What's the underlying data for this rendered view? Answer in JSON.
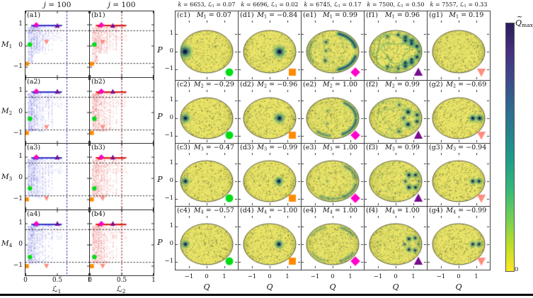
{
  "chart_data": {
    "type": "multi-panel scientific figure: 8 scatter panels (Lyapunov exponent vs magnetization) + 20 Husimi phase-space heatmaps + colorbar",
    "markers": {
      "c": {
        "shape": "circle",
        "color": "#00dd14",
        "name": "green-circle"
      },
      "d": {
        "shape": "square",
        "color": "#ff8a00",
        "name": "orange-square"
      },
      "e": {
        "shape": "diamond",
        "color": "#ff00cc",
        "name": "magenta-diamond"
      },
      "f": {
        "shape": "triangle-up",
        "color": "#780d8c",
        "name": "purple-triangle"
      },
      "g": {
        "shape": "triangle-down",
        "color": "#ff8d80",
        "name": "salmon-down-triangle"
      }
    },
    "scatter": {
      "titles": [
        {
          "var": "j",
          "rest": " = 100"
        },
        {
          "var": "j",
          "rest": " = 100"
        }
      ],
      "panel_ids": [
        [
          "(a1)",
          "(a2)",
          "(a3)",
          "(a4)"
        ],
        [
          "(b1)",
          "(b2)",
          "(b3)",
          "(b4)"
        ]
      ],
      "ylabels": [
        {
          "base": "M",
          "sub": "1"
        },
        {
          "base": "M",
          "sub": "2"
        },
        {
          "base": "M",
          "sub": "3"
        },
        {
          "base": "M",
          "sub": "4"
        }
      ],
      "xlabels": [
        {
          "base": "ℒ",
          "sub": "1"
        },
        {
          "base": "ℒ",
          "sub": "2"
        }
      ],
      "yticks": [
        {
          "v": 1,
          "t": "1"
        },
        {
          "v": 0,
          "t": "0"
        },
        {
          "v": -1,
          "t": "−1"
        }
      ],
      "xticks": [
        {
          "v": 0,
          "t": "0"
        },
        {
          "v": 0.5,
          "t": "0.5"
        },
        {
          "v": 1,
          "t": "1"
        }
      ],
      "point_colors": [
        "#3b3bd0",
        "#dd2525"
      ],
      "hlines": [
        0.72,
        -0.82
      ],
      "vlines": [
        {
          "x": 0.65,
          "color": "#2020a8"
        },
        {
          "x": 0.5,
          "color": "#8b1515"
        }
      ],
      "marker_points": [
        {
          "key": "c",
          "x": [
            0.07,
            0.07
          ],
          "M": [
            0.07,
            -0.29,
            -0.47,
            -0.57
          ]
        },
        {
          "key": "d",
          "x": [
            0.02,
            0.03
          ],
          "M": [
            -0.84,
            -0.96,
            -0.99,
            -1.0
          ]
        },
        {
          "key": "e",
          "x": [
            0.17,
            0.18
          ],
          "M": [
            0.99,
            1.0,
            1.0,
            1.0
          ]
        },
        {
          "key": "f",
          "x": [
            0.5,
            0.36
          ],
          "M": [
            0.96,
            0.99,
            0.99,
            1.0
          ]
        },
        {
          "key": "g",
          "x": [
            0.33,
            0.2
          ],
          "M": [
            0.19,
            -0.69,
            -0.94,
            -0.99
          ]
        }
      ],
      "cloud": {
        "band_y": [
          0.95,
          1.02
        ],
        "band_x": [
          0.08,
          0.56
        ],
        "spread_x": [
          0.0,
          0.45
        ],
        "spread_y": [
          -0.9,
          0.95
        ]
      }
    },
    "husimi": {
      "headers": [
        {
          "k": "k",
          "mid": " = 6653, ",
          "L": "ℒ",
          "Lsub": "1",
          "tail": " = 0.07"
        },
        {
          "k": "k",
          "mid": " = 6696, ",
          "L": "ℒ",
          "Lsub": "1",
          "tail": " = 0.02"
        },
        {
          "k": "k",
          "mid": " = 6745, ",
          "L": "ℒ",
          "Lsub": "1",
          "tail": " = 0.17"
        },
        {
          "k": "k",
          "mid": " = 7500, ",
          "L": "ℒ",
          "Lsub": "1",
          "tail": " = 0.50"
        },
        {
          "k": "k",
          "mid": " = 7557, ",
          "L": "ℒ",
          "Lsub": "1",
          "tail": " = 0.33"
        }
      ],
      "xlabel": "Q",
      "ylabel": "P",
      "xticks": [
        {
          "v": -1,
          "t": "−1"
        },
        {
          "v": 0,
          "t": "0"
        },
        {
          "v": 1,
          "t": "1"
        }
      ],
      "yticks": [
        {
          "v": 1,
          "t": "1"
        },
        {
          "v": 0,
          "t": "0"
        },
        {
          "v": -1,
          "t": "−1"
        }
      ],
      "cells": [
        [
          {
            "id": "(c1)",
            "var": "M",
            "sub": "1",
            "val": " = 0.07",
            "marker": "c",
            "spots": [
              [
                -1.22,
                0,
                0.27,
                1
              ]
            ],
            "arcs": [],
            "web": 0
          },
          {
            "id": "(d1)",
            "var": "M",
            "sub": "1",
            "val": " = −0.84",
            "marker": "d",
            "spots": [
              [
                0.55,
                0,
                0.24,
                1
              ]
            ],
            "arcs": [],
            "web": 0
          },
          {
            "id": "(e1)",
            "var": "M",
            "sub": "1",
            "val": " = 0.99",
            "marker": "e",
            "spots": [
              [
                -0.38,
                0.55,
                0.13,
                0.5
              ],
              [
                -0.38,
                0.05,
                0.12,
                0.45
              ],
              [
                -0.42,
                -0.5,
                0.13,
                0.5
              ]
            ],
            "arcs": [
              [
                15,
                75,
                0.95
              ],
              [
                -75,
                -15,
                0.95
              ],
              [
                150,
                215,
                0.25
              ]
            ],
            "web": 0.35
          },
          {
            "id": "(f1)",
            "var": "M",
            "sub": "1",
            "val": " = 0.96",
            "marker": "f",
            "spots": [
              [
                0.55,
                0.8,
                0.15,
                0.95
              ],
              [
                0.55,
                0.62,
                0.13,
                0.8
              ],
              [
                0.9,
                0.6,
                0.15,
                0.95
              ],
              [
                0.9,
                0.44,
                0.12,
                0.8
              ],
              [
                1.2,
                0.3,
                0.13,
                0.85
              ],
              [
                0.55,
                -0.8,
                0.15,
                0.95
              ],
              [
                0.55,
                -0.62,
                0.13,
                0.8
              ],
              [
                0.9,
                -0.6,
                0.15,
                0.95
              ],
              [
                0.9,
                -0.44,
                0.12,
                0.8
              ],
              [
                1.2,
                -0.3,
                0.13,
                0.85
              ],
              [
                0.15,
                0.95,
                0.12,
                0.6
              ],
              [
                0.15,
                -0.95,
                0.12,
                0.6
              ],
              [
                -0.45,
                0.85,
                0.11,
                0.5
              ],
              [
                -0.45,
                -0.85,
                0.11,
                0.5
              ],
              [
                1.32,
                0,
                0.1,
                0.5
              ]
            ],
            "arcs": [],
            "web": 1
          },
          {
            "id": "(g1)",
            "var": "M",
            "sub": "1",
            "val": " = 0.19",
            "marker": "g",
            "spots": [],
            "arcs": [],
            "web": 0.12
          }
        ],
        [
          {
            "id": "(c2)",
            "var": "M",
            "sub": "2",
            "val": " = −0.29",
            "marker": "c",
            "spots": [
              [
                -1.2,
                0,
                0.19,
                0.95
              ]
            ],
            "arcs": [],
            "web": 0
          },
          {
            "id": "(d2)",
            "var": "M",
            "sub": "2",
            "val": " = −0.96",
            "marker": "d",
            "spots": [
              [
                0.55,
                0,
                0.2,
                1
              ]
            ],
            "arcs": [],
            "web": 0
          },
          {
            "id": "(e2)",
            "var": "M",
            "sub": "2",
            "val": " = 1.00",
            "marker": "e",
            "spots": [
              [
                -0.3,
                0.4,
                0.1,
                0.3
              ],
              [
                -0.3,
                -0.3,
                0.1,
                0.3
              ]
            ],
            "arcs": [
              [
                5,
                60,
                0.6
              ],
              [
                -65,
                -5,
                0.7
              ],
              [
                -130,
                -95,
                0.4
              ]
            ],
            "web": 0.2
          },
          {
            "id": "(f2)",
            "var": "M",
            "sub": "2",
            "val": " = 0.99",
            "marker": "f",
            "spots": [
              [
                0.7,
                0.35,
                0.15,
                0.9
              ],
              [
                0.7,
                -0.35,
                0.15,
                0.9
              ],
              [
                1.2,
                0.18,
                0.12,
                0.8
              ],
              [
                1.2,
                -0.18,
                0.12,
                0.8
              ],
              [
                0.45,
                0,
                0.12,
                0.6
              ],
              [
                0.2,
                0.75,
                0.11,
                0.5
              ],
              [
                0.2,
                -0.75,
                0.11,
                0.5
              ]
            ],
            "arcs": [],
            "web": 0.55
          },
          {
            "id": "(g2)",
            "var": "M",
            "sub": "2",
            "val": " = −0.69",
            "marker": "g",
            "spots": [
              [
                0.8,
                0,
                0.15,
                1
              ],
              [
                1.18,
                0,
                0.15,
                1
              ]
            ],
            "arcs": [],
            "web": 0
          }
        ],
        [
          {
            "id": "(c3)",
            "var": "M",
            "sub": "3",
            "val": " = −0.47",
            "marker": "c",
            "spots": [
              [
                -1.2,
                0,
                0.16,
                0.9
              ]
            ],
            "arcs": [],
            "web": 0
          },
          {
            "id": "(d3)",
            "var": "M",
            "sub": "3",
            "val": " = −0.99",
            "marker": "d",
            "spots": [
              [
                0.52,
                0,
                0.17,
                1
              ]
            ],
            "arcs": [],
            "web": 0
          },
          {
            "id": "(e3)",
            "var": "M",
            "sub": "3",
            "val": " = 1.00",
            "marker": "e",
            "spots": [
              [
                -0.3,
                0,
                0.09,
                0.25
              ]
            ],
            "arcs": [
              [
                10,
                60,
                0.4
              ],
              [
                -60,
                -10,
                0.45
              ],
              [
                -120,
                -60,
                0.3
              ]
            ],
            "web": 0.15
          },
          {
            "id": "(f3)",
            "var": "M",
            "sub": "3",
            "val": " = 0.99",
            "marker": "f",
            "spots": [
              [
                0.75,
                0.35,
                0.13,
                0.9
              ],
              [
                0.75,
                -0.35,
                0.13,
                0.9
              ],
              [
                1.12,
                0.35,
                0.12,
                0.85
              ],
              [
                1.12,
                -0.35,
                0.12,
                0.85
              ],
              [
                0.55,
                0,
                0.11,
                0.6
              ],
              [
                1.3,
                0,
                0.09,
                0.4
              ]
            ],
            "arcs": [],
            "web": 0.3
          },
          {
            "id": "(g3)",
            "var": "M",
            "sub": "3",
            "val": " = −0.94",
            "marker": "g",
            "spots": [
              [
                0.8,
                0,
                0.13,
                0.9
              ],
              [
                1.15,
                0,
                0.13,
                0.9
              ]
            ],
            "arcs": [],
            "web": 0
          }
        ],
        [
          {
            "id": "(c4)",
            "var": "M",
            "sub": "4",
            "val": " = −0.57",
            "marker": "c",
            "spots": [
              [
                -1.2,
                0,
                0.16,
                0.9
              ]
            ],
            "arcs": [],
            "web": 0
          },
          {
            "id": "(d4)",
            "var": "M",
            "sub": "4",
            "val": " = −1.00",
            "marker": "d",
            "spots": [
              [
                0.52,
                0,
                0.17,
                1
              ]
            ],
            "arcs": [],
            "web": 0
          },
          {
            "id": "(e4)",
            "var": "M",
            "sub": "4",
            "val": " = 1.00",
            "marker": "e",
            "spots": [],
            "arcs": [
              [
                30,
                70,
                0.35
              ],
              [
                -70,
                -30,
                0.35
              ],
              [
                110,
                150,
                0.2
              ],
              [
                -150,
                -110,
                0.2
              ]
            ],
            "web": 0.1
          },
          {
            "id": "(f4)",
            "var": "M",
            "sub": "4",
            "val": " = 1.00",
            "marker": "f",
            "spots": [
              [
                0.75,
                0.3,
                0.12,
                0.85
              ],
              [
                0.75,
                -0.3,
                0.12,
                0.85
              ],
              [
                1.1,
                0.35,
                0.11,
                0.8
              ],
              [
                1.1,
                -0.35,
                0.11,
                0.8
              ],
              [
                0.5,
                0,
                0.1,
                0.55
              ],
              [
                1.28,
                0,
                0.09,
                0.45
              ]
            ],
            "arcs": [],
            "web": 0.25
          },
          {
            "id": "(g4)",
            "var": "M",
            "sub": "4",
            "val": " = −0.99",
            "marker": "g",
            "spots": [
              [
                0.8,
                0,
                0.13,
                0.85
              ],
              [
                1.15,
                0,
                0.13,
                0.85
              ]
            ],
            "arcs": [],
            "web": 0
          }
        ]
      ]
    },
    "colorbar": {
      "label_base": "Q",
      "label_tilde": "~",
      "label_sub": "max",
      "min": "0",
      "colors_bottom_to_top": [
        "#fde725",
        "#b8de29",
        "#6ece58",
        "#35b779",
        "#1f9e89",
        "#26828e",
        "#31688e",
        "#3e4989",
        "#472f7d",
        "#2a1e5a"
      ]
    }
  }
}
